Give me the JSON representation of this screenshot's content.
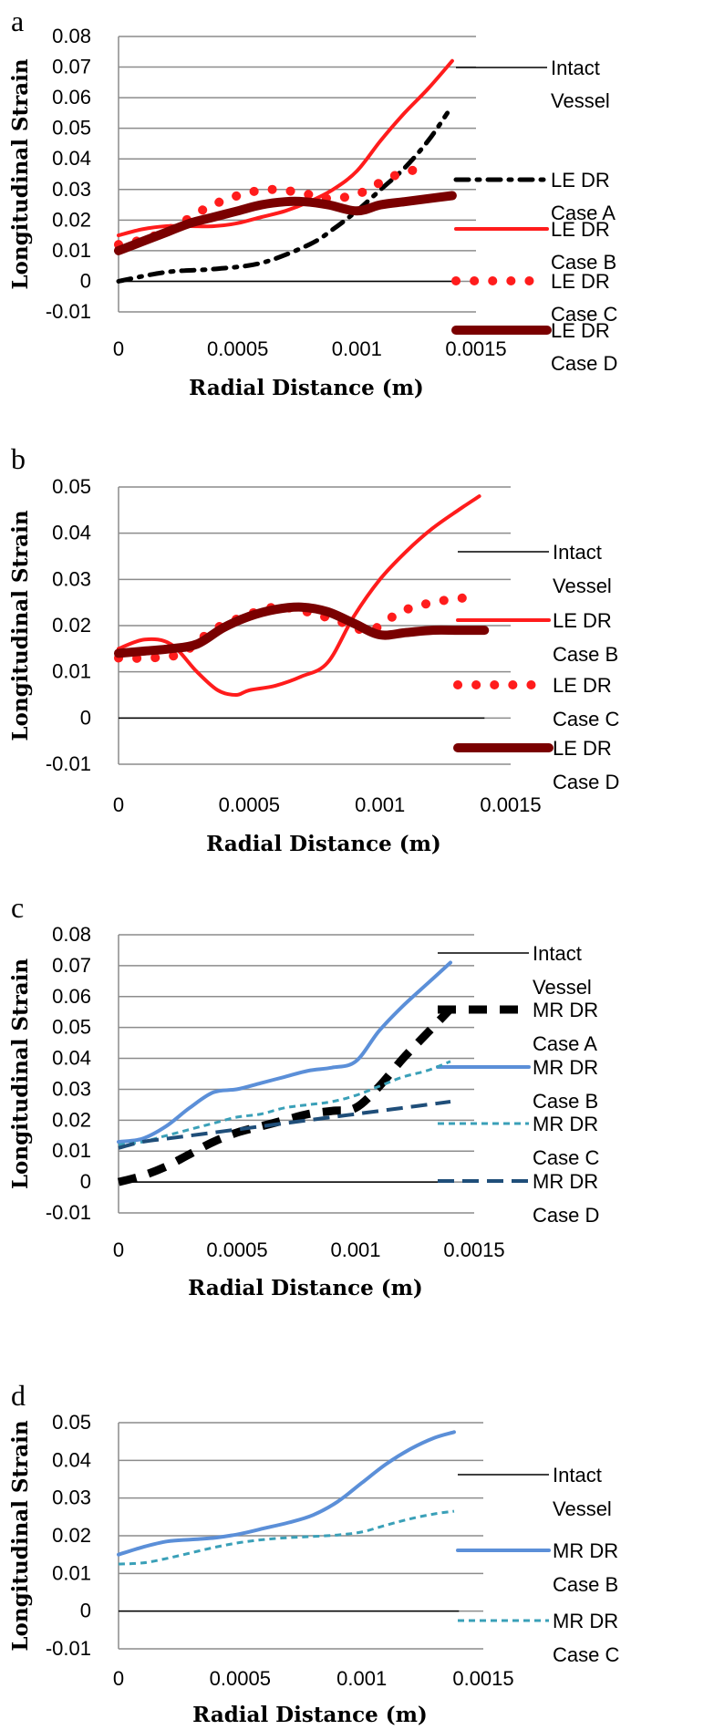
{
  "chart_data": [
    {
      "panel": "a",
      "type": "line",
      "xlabel": "Radial Distance (m)",
      "ylabel": "Longitudinal Strain",
      "xlim": [
        0,
        0.0015
      ],
      "ylim": [
        -0.01,
        0.08
      ],
      "xticks": [
        "0",
        "0.0005",
        "0.001",
        "0.0015"
      ],
      "yticks": [
        "0.08",
        "0.07",
        "0.06",
        "0.05",
        "0.04",
        "0.03",
        "0.02",
        "0.01",
        "0",
        "-0.01"
      ],
      "grid": true,
      "legend_position": "right",
      "series": [
        {
          "name": "Intact Vessel",
          "legend": [
            "Intact",
            "Vessel"
          ],
          "style": "thin",
          "color": "#000000",
          "x": [
            0,
            0.0014
          ],
          "y": [
            0,
            0
          ]
        },
        {
          "name": "LE DR Case A",
          "legend": [
            "LE DR",
            "Case A"
          ],
          "style": "dashdot",
          "color": "#000000",
          "x": [
            0,
            0.0002,
            0.0004,
            0.0006,
            0.0008,
            0.0009,
            0.001,
            0.0011,
            0.0012,
            0.0013,
            0.00138
          ],
          "y": [
            0,
            0.003,
            0.004,
            0.006,
            0.012,
            0.017,
            0.023,
            0.03,
            0.037,
            0.046,
            0.055
          ]
        },
        {
          "name": "LE DR Case B",
          "legend": [
            "LE DR",
            "Case B"
          ],
          "style": "solid",
          "color": "#ff1c1c",
          "x": [
            0,
            0.0001,
            0.0002,
            0.0003,
            0.0004,
            0.0005,
            0.0006,
            0.0007,
            0.0008,
            0.0009,
            0.001,
            0.0011,
            0.0012,
            0.0013,
            0.0014
          ],
          "y": [
            0.015,
            0.017,
            0.018,
            0.018,
            0.018,
            0.019,
            0.021,
            0.023,
            0.026,
            0.03,
            0.036,
            0.046,
            0.055,
            0.063,
            0.072
          ]
        },
        {
          "name": "LE DR Case C",
          "legend": [
            "LE DR",
            "Case C"
          ],
          "style": "dotted",
          "color": "#ff1c1c",
          "x": [
            0,
            0.00012,
            0.00024,
            0.00037,
            0.0005,
            0.00063,
            0.00076,
            0.00089,
            0.00102,
            0.00114,
            0.00127
          ],
          "y": [
            0.012,
            0.014,
            0.018,
            0.024,
            0.028,
            0.03,
            0.029,
            0.027,
            0.029,
            0.034,
            0.037
          ]
        },
        {
          "name": "LE DR Case D",
          "legend": [
            "LE DR",
            "Case D"
          ],
          "style": "thick",
          "color": "#7a0000",
          "x": [
            0,
            0.0001,
            0.0002,
            0.0003,
            0.0004,
            0.0005,
            0.0006,
            0.0007,
            0.00078,
            0.00088,
            0.001,
            0.0011,
            0.0012,
            0.0013,
            0.0014
          ],
          "y": [
            0.01,
            0.013,
            0.016,
            0.019,
            0.021,
            0.023,
            0.025,
            0.026,
            0.026,
            0.025,
            0.023,
            0.025,
            0.026,
            0.027,
            0.028
          ]
        }
      ]
    },
    {
      "panel": "b",
      "type": "line",
      "xlabel": "Radial Distance (m)",
      "ylabel": "Longitudinal Strain",
      "xlim": [
        0,
        0.0015
      ],
      "ylim": [
        -0.01,
        0.05
      ],
      "xticks": [
        "0",
        "0.0005",
        "0.001",
        "0.0015"
      ],
      "yticks": [
        "0.05",
        "0.04",
        "0.03",
        "0.02",
        "0.01",
        "0",
        "-0.01"
      ],
      "grid": true,
      "legend_position": "right",
      "series": [
        {
          "name": "Intact Vessel",
          "legend": [
            "Intact",
            "Vessel"
          ],
          "style": "thin",
          "color": "#000000",
          "x": [
            0,
            0.0014
          ],
          "y": [
            0,
            0
          ]
        },
        {
          "name": "LE DR Case B",
          "legend": [
            "LE DR",
            "Case B"
          ],
          "style": "solid",
          "color": "#ff1c1c",
          "x": [
            0,
            0.0001,
            0.0002,
            0.0003,
            0.00038,
            0.00045,
            0.0005,
            0.0006,
            0.0007,
            0.0008,
            0.0009,
            0.001,
            0.0011,
            0.0012,
            0.0013,
            0.00138
          ],
          "y": [
            0.015,
            0.017,
            0.016,
            0.01,
            0.006,
            0.005,
            0.006,
            0.007,
            0.009,
            0.012,
            0.022,
            0.03,
            0.036,
            0.041,
            0.045,
            0.048
          ]
        },
        {
          "name": "LE DR Case C",
          "legend": [
            "LE DR",
            "Case C"
          ],
          "style": "dotted",
          "color": "#ff1c1c",
          "x": [
            0,
            0.00012,
            0.00024,
            0.00036,
            0.00048,
            0.0006,
            0.00072,
            0.00084,
            0.00096,
            0.00108,
            0.0012,
            0.00132
          ],
          "y": [
            0.013,
            0.013,
            0.014,
            0.019,
            0.022,
            0.024,
            0.023,
            0.021,
            0.019,
            0.023,
            0.025,
            0.026
          ]
        },
        {
          "name": "LE DR Case D",
          "legend": [
            "LE DR",
            "Case D"
          ],
          "style": "thick",
          "color": "#7a0000",
          "x": [
            0,
            0.0001,
            0.0002,
            0.0003,
            0.0004,
            0.0005,
            0.0006,
            0.0007,
            0.0008,
            0.0009,
            0.001,
            0.0011,
            0.0012,
            0.0013,
            0.0014
          ],
          "y": [
            0.014,
            0.0145,
            0.015,
            0.016,
            0.0195,
            0.022,
            0.0235,
            0.024,
            0.023,
            0.0205,
            0.018,
            0.0185,
            0.019,
            0.019,
            0.019
          ]
        }
      ]
    },
    {
      "panel": "c",
      "type": "line",
      "xlabel": "Radial Distance (m)",
      "ylabel": "Longitudinal Strain",
      "xlim": [
        0,
        0.0015
      ],
      "ylim": [
        -0.01,
        0.08
      ],
      "xticks": [
        "0",
        "0.0005",
        "0.001",
        "0.0015"
      ],
      "yticks": [
        "0.08",
        "0.07",
        "0.06",
        "0.05",
        "0.04",
        "0.03",
        "0.02",
        "0.01",
        "0",
        "-0.01"
      ],
      "grid": true,
      "legend_position": "right",
      "series": [
        {
          "name": "Intact Vessel",
          "legend": [
            "Intact",
            "Vessel"
          ],
          "style": "thin",
          "color": "#000000",
          "x": [
            0,
            0.0014
          ],
          "y": [
            0,
            0
          ]
        },
        {
          "name": "MR DR Case A",
          "legend": [
            "MR DR",
            "Case A"
          ],
          "style": "bigdash",
          "color": "#000000",
          "x": [
            0,
            0.0001,
            0.0002,
            0.0003,
            0.0004,
            0.0005,
            0.0006,
            0.0007,
            0.0008,
            0.0009,
            0.001,
            0.0011,
            0.0012,
            0.0013,
            0.0014
          ],
          "y": [
            0,
            0.002,
            0.005,
            0.009,
            0.013,
            0.016,
            0.018,
            0.02,
            0.022,
            0.023,
            0.024,
            0.031,
            0.04,
            0.048,
            0.056
          ]
        },
        {
          "name": "MR DR Case B",
          "legend": [
            "MR DR",
            "Case B"
          ],
          "style": "solid",
          "color": "#5b8fd8",
          "x": [
            0,
            0.0001,
            0.0002,
            0.0003,
            0.0004,
            0.0005,
            0.0006,
            0.0007,
            0.0008,
            0.0009,
            0.001,
            0.0011,
            0.0012,
            0.0013,
            0.0014
          ],
          "y": [
            0.013,
            0.014,
            0.018,
            0.024,
            0.029,
            0.03,
            0.032,
            0.034,
            0.036,
            0.037,
            0.039,
            0.049,
            0.057,
            0.064,
            0.071
          ]
        },
        {
          "name": "MR DR Case C",
          "legend": [
            "MR DR",
            "Case C"
          ],
          "style": "dashed",
          "color": "#3aa0b8",
          "x": [
            0,
            0.0001,
            0.0002,
            0.0003,
            0.0004,
            0.0005,
            0.0006,
            0.0007,
            0.0008,
            0.0009,
            0.001,
            0.0011,
            0.0012,
            0.0013,
            0.0014
          ],
          "y": [
            0.012,
            0.013,
            0.015,
            0.017,
            0.019,
            0.021,
            0.022,
            0.024,
            0.025,
            0.026,
            0.028,
            0.031,
            0.034,
            0.036,
            0.039
          ]
        },
        {
          "name": "MR DR Case D",
          "legend": [
            "MR DR",
            "Case D"
          ],
          "style": "longdash",
          "color": "#1f4e79",
          "x": [
            0,
            0.0001,
            0.0002,
            0.0003,
            0.0004,
            0.0005,
            0.0006,
            0.0007,
            0.0008,
            0.0009,
            0.001,
            0.0011,
            0.0012,
            0.0013,
            0.0014
          ],
          "y": [
            0.011,
            0.013,
            0.014,
            0.015,
            0.016,
            0.017,
            0.018,
            0.019,
            0.02,
            0.021,
            0.022,
            0.023,
            0.024,
            0.025,
            0.026
          ]
        }
      ]
    },
    {
      "panel": "d",
      "type": "line",
      "xlabel": "Radial Distance (m)",
      "ylabel": "Longitudinal Strain",
      "xlim": [
        0,
        0.0015
      ],
      "ylim": [
        -0.01,
        0.05
      ],
      "xticks": [
        "0",
        "0.0005",
        "0.001",
        "0.0015"
      ],
      "yticks": [
        "0.05",
        "0.04",
        "0.03",
        "0.02",
        "0.01",
        "0",
        "-0.01"
      ],
      "grid": true,
      "legend_position": "right",
      "series": [
        {
          "name": "Intact Vessel",
          "legend": [
            "Intact",
            "Vessel"
          ],
          "style": "thin",
          "color": "#000000",
          "x": [
            0,
            0.0014
          ],
          "y": [
            0,
            0
          ]
        },
        {
          "name": "MR DR Case B",
          "legend": [
            "MR DR",
            "Case B"
          ],
          "style": "solid",
          "color": "#5b8fd8",
          "x": [
            0,
            0.0001,
            0.0002,
            0.0003,
            0.0004,
            0.0005,
            0.0006,
            0.0007,
            0.0008,
            0.0009,
            0.001,
            0.0011,
            0.0012,
            0.0013,
            0.00138
          ],
          "y": [
            0.015,
            0.017,
            0.0185,
            0.019,
            0.0195,
            0.0205,
            0.022,
            0.0235,
            0.0255,
            0.029,
            0.034,
            0.039,
            0.043,
            0.046,
            0.0475
          ]
        },
        {
          "name": "MR DR Case C",
          "legend": [
            "MR DR",
            "Case C"
          ],
          "style": "dashed",
          "color": "#3aa0b8",
          "x": [
            0,
            0.0001,
            0.0002,
            0.0003,
            0.0004,
            0.0005,
            0.0006,
            0.0007,
            0.0008,
            0.0009,
            0.001,
            0.0011,
            0.0012,
            0.0013,
            0.00138
          ],
          "y": [
            0.0125,
            0.0128,
            0.014,
            0.0155,
            0.017,
            0.0182,
            0.019,
            0.0195,
            0.0198,
            0.0202,
            0.021,
            0.0228,
            0.0245,
            0.0258,
            0.0265
          ]
        }
      ]
    }
  ]
}
